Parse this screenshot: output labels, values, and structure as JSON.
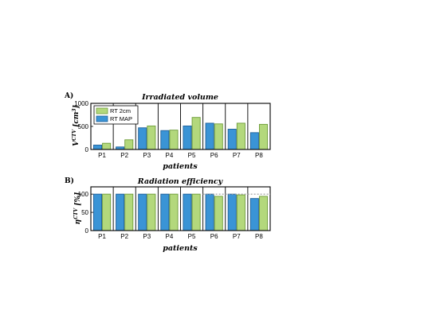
{
  "chart_data": [
    {
      "type": "bar",
      "panel_label": "A)",
      "title": "Irradiated volume",
      "xlabel": "patients",
      "ylabel": "V",
      "ylabel_superscript": "CTV",
      "ylabel_unit": "[cm",
      "ylabel_unit_exp": "3",
      "ylabel_unit_close": "]",
      "categories": [
        "P1",
        "P2",
        "P3",
        "P4",
        "P5",
        "P6",
        "P7",
        "P8"
      ],
      "ylim": [
        0,
        1000
      ],
      "yticks": [
        0,
        500,
        1000
      ],
      "legend_position": "top-left",
      "series": [
        {
          "name": "RT MAP",
          "values": [
            95,
            55,
            470,
            410,
            510,
            570,
            440,
            365
          ]
        },
        {
          "name": "RT 2cm",
          "values": [
            135,
            210,
            510,
            420,
            695,
            555,
            570,
            545
          ]
        }
      ]
    },
    {
      "type": "bar",
      "panel_label": "B)",
      "title": "Radiation efficiency",
      "xlabel": "patients",
      "ylabel": "η",
      "ylabel_superscript": "CTV",
      "ylabel_unit": "[%]",
      "categories": [
        "P1",
        "P2",
        "P3",
        "P4",
        "P5",
        "P6",
        "P7",
        "P8"
      ],
      "ylim": [
        0,
        120
      ],
      "yticks": [
        0,
        50,
        100
      ],
      "reference_line": 100,
      "series": [
        {
          "name": "RT MAP",
          "values": [
            100,
            100,
            100,
            100,
            100,
            100,
            100,
            88
          ]
        },
        {
          "name": "RT 2cm",
          "values": [
            100,
            100,
            100,
            100,
            100,
            94,
            98,
            94
          ]
        }
      ]
    }
  ],
  "colors": {
    "rt_map_fill": "#3a94d6",
    "rt_map_edge": "#1f5f98",
    "rt_2cm_fill": "#b3d87c",
    "rt_2cm_edge": "#6e9c3a",
    "reference_line": "#9a9a9a"
  }
}
